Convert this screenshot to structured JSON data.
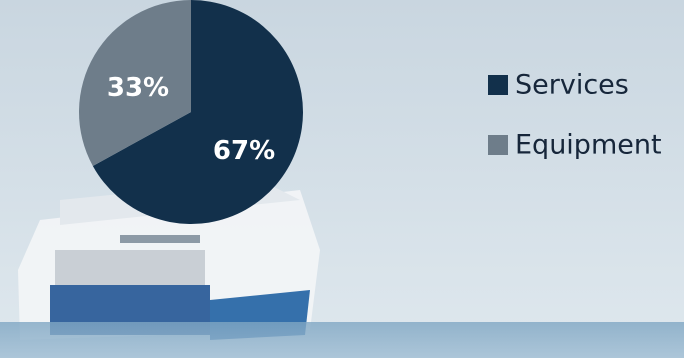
{
  "chart_data": {
    "type": "pie",
    "categories": [
      "Services",
      "Equipment"
    ],
    "values": [
      67,
      33
    ],
    "value_labels": [
      "67%",
      "33%"
    ],
    "colors": [
      "#12304b",
      "#6e7d8a"
    ],
    "legend": "right"
  }
}
